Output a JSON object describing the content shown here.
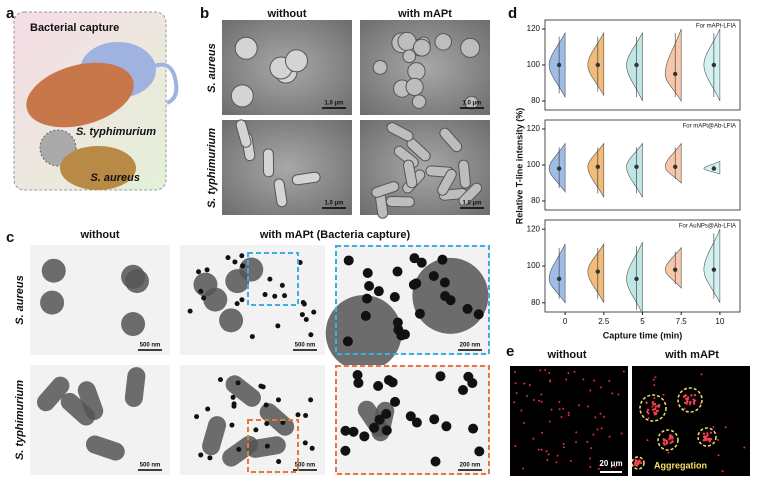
{
  "figure": {
    "a": {
      "label": "a",
      "title": "Bacterial capture",
      "species": [
        "S. typhimurium",
        "S. aureus"
      ]
    },
    "b": {
      "label": "b",
      "columns": [
        "without",
        "with mAPt"
      ],
      "rows": [
        "S. aureus",
        "S. typhimurium"
      ],
      "scale_bar": "1.0 μm"
    },
    "c": {
      "label": "c",
      "columns": [
        "without",
        "with mAPt (Bacteria capture)"
      ],
      "rows": [
        "S. aureus",
        "S. typhimurium"
      ],
      "scale_bars": [
        "500 nm",
        "200 nm"
      ]
    },
    "d": {
      "label": "d"
    },
    "e": {
      "label": "e",
      "columns": [
        "without",
        "with mAPt"
      ],
      "scale_bar": "20 μm",
      "annotation": "Aggregation"
    }
  },
  "chart_data": {
    "type": "violin",
    "xlabel": "Capture time (min)",
    "ylabel": "Relative T-line intensity (%)",
    "x": [
      0,
      2.5,
      5,
      7.5,
      10
    ],
    "xlim": [
      -1.3,
      11.3
    ],
    "xticks": [
      0,
      2.5,
      5,
      7.5,
      10
    ],
    "colors": [
      "#7fa6dc",
      "#e9a54c",
      "#a9dcdc",
      "#f5b48e",
      "#c4ecec"
    ],
    "panels": [
      {
        "title": "For mAPt-LFIA",
        "values": [
          100,
          100,
          100,
          95,
          100
        ],
        "low": [
          82,
          83,
          80,
          80,
          80
        ],
        "high": [
          118,
          118,
          118,
          120,
          120
        ],
        "ylim": [
          75,
          125
        ],
        "yticks": [
          80,
          100,
          120
        ]
      },
      {
        "title": "For mAPt@Ab-LFIA",
        "values": [
          98,
          99,
          99,
          99,
          98
        ],
        "low": [
          85,
          82,
          82,
          90,
          95
        ],
        "high": [
          112,
          112,
          112,
          112,
          102
        ],
        "ylim": [
          75,
          125
        ],
        "yticks": [
          80,
          100,
          120
        ]
      },
      {
        "title": "For AuNPs@Ab-LFIA",
        "values": [
          93,
          97,
          93,
          98,
          98
        ],
        "low": [
          80,
          80,
          74,
          88,
          80
        ],
        "high": [
          112,
          112,
          113,
          110,
          120
        ],
        "ylim": [
          75,
          125
        ],
        "yticks": [
          80,
          100,
          120
        ]
      }
    ]
  }
}
